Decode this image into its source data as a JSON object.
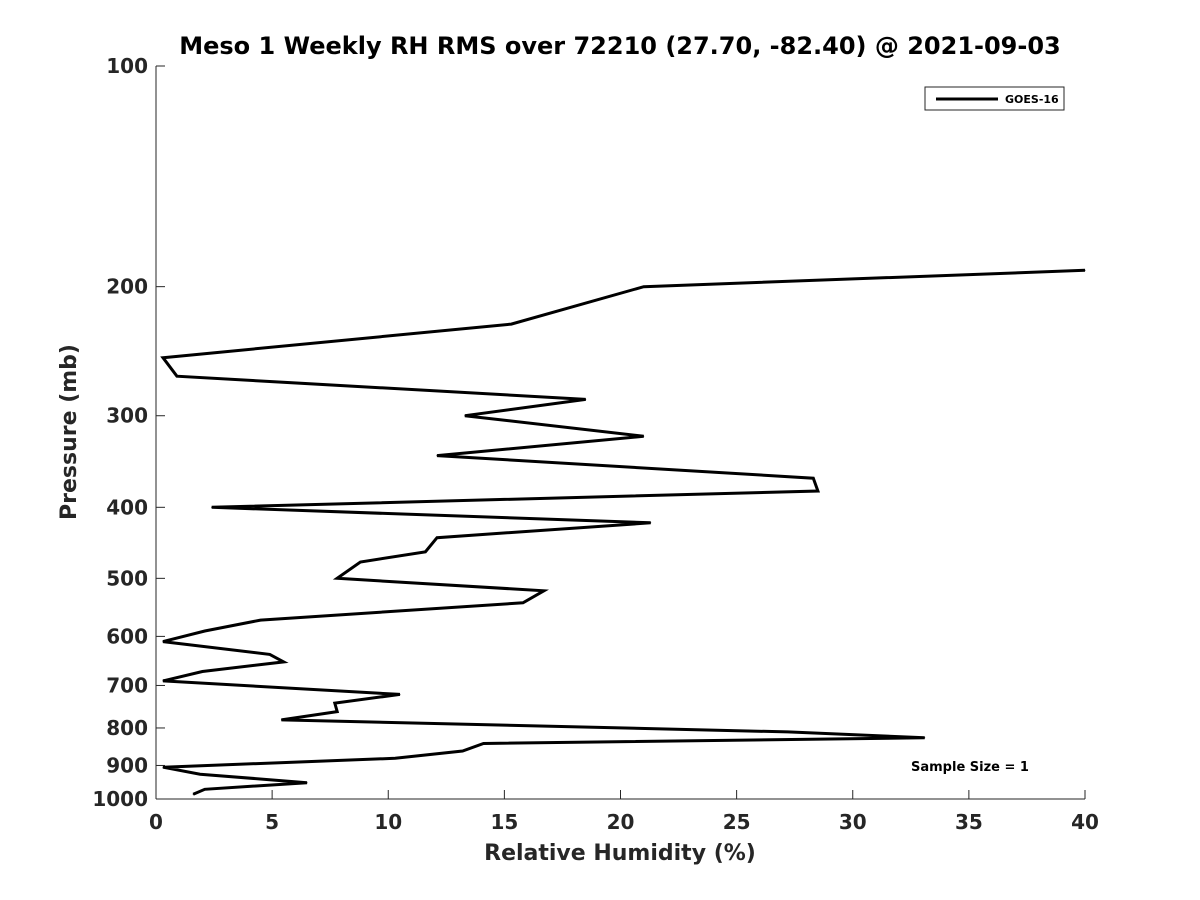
{
  "chart_data": {
    "type": "line",
    "title": "Meso 1 Weekly RH RMS over 72210 (27.70, -82.40) @ 2021-09-03",
    "xlabel": "Relative Humidity (%)",
    "ylabel": "Pressure (mb)",
    "xlim": [
      0,
      40
    ],
    "ylim": [
      100,
      1000
    ],
    "y_scale": "log",
    "y_reversed": true,
    "x_ticks": [
      0,
      5,
      10,
      15,
      20,
      25,
      30,
      35,
      40
    ],
    "y_ticks": [
      100,
      200,
      300,
      400,
      500,
      600,
      700,
      800,
      900,
      1000
    ],
    "grid": false,
    "legend_position": "top-right",
    "line_color": "#000000",
    "series": [
      {
        "name": "GOES-16",
        "points": [
          [
            40,
            190
          ],
          [
            21,
            200
          ],
          [
            15.3,
            225
          ],
          [
            0.3,
            250
          ],
          [
            0.9,
            265
          ],
          [
            18.5,
            285
          ],
          [
            13.3,
            300
          ],
          [
            21,
            320
          ],
          [
            12.1,
            340
          ],
          [
            28.3,
            365
          ],
          [
            28.5,
            380
          ],
          [
            2.4,
            400
          ],
          [
            21.3,
            420
          ],
          [
            12.1,
            440
          ],
          [
            11.6,
            460
          ],
          [
            8.8,
            475
          ],
          [
            7.8,
            500
          ],
          [
            16.7,
            520
          ],
          [
            15.8,
            540
          ],
          [
            4.5,
            570
          ],
          [
            2.1,
            590
          ],
          [
            0.3,
            610
          ],
          [
            4.9,
            635
          ],
          [
            5.5,
            650
          ],
          [
            2,
            670
          ],
          [
            0.3,
            690
          ],
          [
            10.5,
            720
          ],
          [
            7.7,
            740
          ],
          [
            7.8,
            760
          ],
          [
            5.4,
            780
          ],
          [
            27.2,
            810
          ],
          [
            33.1,
            825
          ],
          [
            14.1,
            840
          ],
          [
            13.2,
            860
          ],
          [
            10.3,
            880
          ],
          [
            0.3,
            905
          ],
          [
            1.9,
            925
          ],
          [
            6.5,
            950
          ],
          [
            2.1,
            970
          ],
          [
            1.6,
            985
          ]
        ]
      }
    ],
    "annotations": [
      "Sample Size = 1"
    ]
  }
}
